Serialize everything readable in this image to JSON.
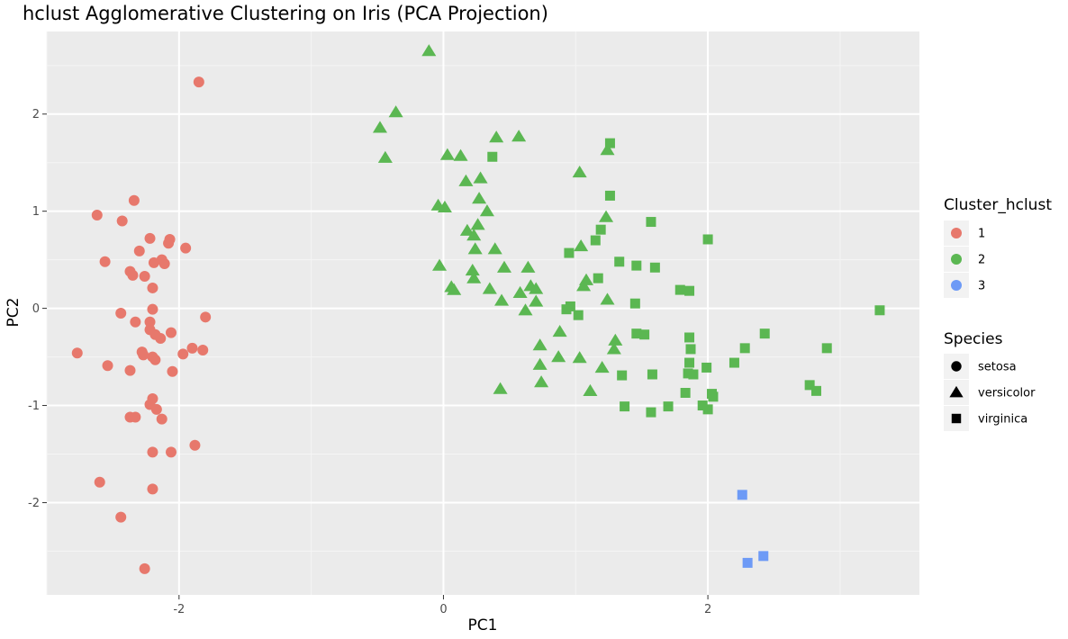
{
  "chart_data": {
    "type": "scatter",
    "title": "hclust Agglomerative Clustering on Iris (PCA Projection)",
    "xlabel": "PC1",
    "ylabel": "PC2",
    "xlim": [
      -3.0,
      3.6
    ],
    "ylim": [
      -2.95,
      2.85
    ],
    "x_ticks": [
      -2,
      0,
      2
    ],
    "y_ticks": [
      -2,
      -1,
      0,
      1,
      2
    ],
    "x_tick_labels": [
      "-2",
      "0",
      "2"
    ],
    "y_tick_labels": [
      "-2",
      "-1",
      "0",
      "1",
      "2"
    ],
    "grid": true,
    "legend_position": "right",
    "colors": {
      "1": "#e7786c",
      "2": "#5bb752",
      "3": "#6d9af6"
    },
    "legend_color": {
      "title": "Cluster_hclust",
      "entries": [
        {
          "label": "1",
          "color": "#e7786c"
        },
        {
          "label": "2",
          "color": "#5bb752"
        },
        {
          "label": "3",
          "color": "#6d9af6"
        }
      ]
    },
    "legend_shape": {
      "title": "Species",
      "entries": [
        {
          "label": "setosa",
          "shape": "circle"
        },
        {
          "label": "versicolor",
          "shape": "triangle"
        },
        {
          "label": "virginica",
          "shape": "square"
        }
      ]
    },
    "series": [
      {
        "name": "setosa",
        "cluster": "1",
        "shape": "circle",
        "points": [
          [
            -1.85,
            2.33
          ],
          [
            -2.34,
            1.11
          ],
          [
            -2.62,
            0.96
          ],
          [
            -2.43,
            0.9
          ],
          [
            -2.22,
            0.72
          ],
          [
            -2.07,
            0.71
          ],
          [
            -2.08,
            0.67
          ],
          [
            -1.95,
            0.62
          ],
          [
            -2.3,
            0.59
          ],
          [
            -2.56,
            0.48
          ],
          [
            -2.13,
            0.5
          ],
          [
            -2.19,
            0.47
          ],
          [
            -2.11,
            0.46
          ],
          [
            -2.37,
            0.38
          ],
          [
            -2.35,
            0.34
          ],
          [
            -2.26,
            0.33
          ],
          [
            -2.2,
            0.21
          ],
          [
            -2.2,
            -0.01
          ],
          [
            -2.44,
            -0.05
          ],
          [
            -2.33,
            -0.14
          ],
          [
            -2.22,
            -0.14
          ],
          [
            -1.8,
            -0.09
          ],
          [
            -2.22,
            -0.22
          ],
          [
            -2.06,
            -0.25
          ],
          [
            -2.18,
            -0.27
          ],
          [
            -2.14,
            -0.31
          ],
          [
            -2.28,
            -0.45
          ],
          [
            -2.27,
            -0.48
          ],
          [
            -2.77,
            -0.46
          ],
          [
            -1.9,
            -0.41
          ],
          [
            -1.82,
            -0.43
          ],
          [
            -1.97,
            -0.47
          ],
          [
            -2.2,
            -0.5
          ],
          [
            -2.18,
            -0.53
          ],
          [
            -2.54,
            -0.59
          ],
          [
            -2.37,
            -0.64
          ],
          [
            -2.05,
            -0.65
          ],
          [
            -2.2,
            -0.93
          ],
          [
            -2.22,
            -0.99
          ],
          [
            -2.17,
            -1.04
          ],
          [
            -2.37,
            -1.12
          ],
          [
            -2.33,
            -1.12
          ],
          [
            -2.13,
            -1.14
          ],
          [
            -1.88,
            -1.41
          ],
          [
            -2.2,
            -1.48
          ],
          [
            -2.06,
            -1.48
          ],
          [
            -2.6,
            -1.79
          ],
          [
            -2.2,
            -1.86
          ],
          [
            -2.44,
            -2.15
          ],
          [
            -2.26,
            -2.68
          ]
        ]
      },
      {
        "name": "versicolor",
        "cluster": "2",
        "shape": "triangle",
        "points": [
          [
            -0.11,
            2.65
          ],
          [
            -0.36,
            2.02
          ],
          [
            -0.48,
            1.86
          ],
          [
            -0.44,
            1.55
          ],
          [
            0.4,
            1.76
          ],
          [
            0.57,
            1.77
          ],
          [
            0.03,
            1.58
          ],
          [
            0.13,
            1.57
          ],
          [
            1.03,
            1.4
          ],
          [
            0.17,
            1.31
          ],
          [
            0.28,
            1.34
          ],
          [
            0.27,
            1.13
          ],
          [
            1.24,
            1.63
          ],
          [
            -0.04,
            1.06
          ],
          [
            0.01,
            1.04
          ],
          [
            0.33,
            1.0
          ],
          [
            1.23,
            0.94
          ],
          [
            0.18,
            0.8
          ],
          [
            0.26,
            0.86
          ],
          [
            0.23,
            0.75
          ],
          [
            1.04,
            0.64
          ],
          [
            0.39,
            0.61
          ],
          [
            0.24,
            0.61
          ],
          [
            0.46,
            0.42
          ],
          [
            0.64,
            0.42
          ],
          [
            -0.03,
            0.44
          ],
          [
            0.22,
            0.39
          ],
          [
            0.23,
            0.31
          ],
          [
            1.08,
            0.29
          ],
          [
            1.06,
            0.23
          ],
          [
            0.06,
            0.22
          ],
          [
            0.08,
            0.19
          ],
          [
            0.35,
            0.2
          ],
          [
            0.66,
            0.23
          ],
          [
            0.7,
            0.2
          ],
          [
            0.58,
            0.16
          ],
          [
            0.44,
            0.08
          ],
          [
            1.24,
            0.09
          ],
          [
            0.7,
            0.07
          ],
          [
            0.62,
            -0.02
          ],
          [
            0.88,
            -0.24
          ],
          [
            0.73,
            -0.38
          ],
          [
            1.3,
            -0.33
          ],
          [
            1.29,
            -0.42
          ],
          [
            0.87,
            -0.5
          ],
          [
            1.03,
            -0.51
          ],
          [
            0.73,
            -0.58
          ],
          [
            1.2,
            -0.61
          ],
          [
            0.43,
            -0.83
          ],
          [
            0.74,
            -0.76
          ],
          [
            1.11,
            -0.85
          ]
        ]
      },
      {
        "name": "virginica",
        "cluster": "2",
        "shape": "square",
        "points": [
          [
            0.37,
            1.56
          ],
          [
            1.26,
            1.7
          ],
          [
            1.26,
            1.16
          ],
          [
            1.57,
            0.89
          ],
          [
            2.0,
            0.71
          ],
          [
            1.19,
            0.81
          ],
          [
            1.15,
            0.7
          ],
          [
            0.95,
            0.57
          ],
          [
            1.33,
            0.48
          ],
          [
            1.46,
            0.44
          ],
          [
            1.6,
            0.42
          ],
          [
            1.17,
            0.31
          ],
          [
            1.79,
            0.19
          ],
          [
            1.86,
            0.18
          ],
          [
            1.45,
            0.05
          ],
          [
            0.96,
            0.02
          ],
          [
            0.93,
            -0.01
          ],
          [
            1.02,
            -0.07
          ],
          [
            3.3,
            -0.02
          ],
          [
            1.46,
            -0.26
          ],
          [
            1.52,
            -0.27
          ],
          [
            2.43,
            -0.26
          ],
          [
            1.86,
            -0.3
          ],
          [
            2.28,
            -0.41
          ],
          [
            2.9,
            -0.41
          ],
          [
            1.87,
            -0.42
          ],
          [
            1.86,
            -0.56
          ],
          [
            2.2,
            -0.56
          ],
          [
            1.99,
            -0.61
          ],
          [
            1.85,
            -0.67
          ],
          [
            1.89,
            -0.68
          ],
          [
            1.58,
            -0.68
          ],
          [
            1.35,
            -0.69
          ],
          [
            2.77,
            -0.79
          ],
          [
            2.82,
            -0.85
          ],
          [
            1.83,
            -0.87
          ],
          [
            2.03,
            -0.88
          ],
          [
            2.04,
            -0.91
          ],
          [
            1.37,
            -1.01
          ],
          [
            1.7,
            -1.01
          ],
          [
            1.96,
            -1.0
          ],
          [
            2.0,
            -1.04
          ],
          [
            1.57,
            -1.07
          ]
        ]
      },
      {
        "name": "virginica",
        "cluster": "3",
        "shape": "square",
        "points": [
          [
            2.26,
            -1.92
          ],
          [
            2.42,
            -2.55
          ],
          [
            2.3,
            -2.62
          ]
        ]
      }
    ]
  }
}
